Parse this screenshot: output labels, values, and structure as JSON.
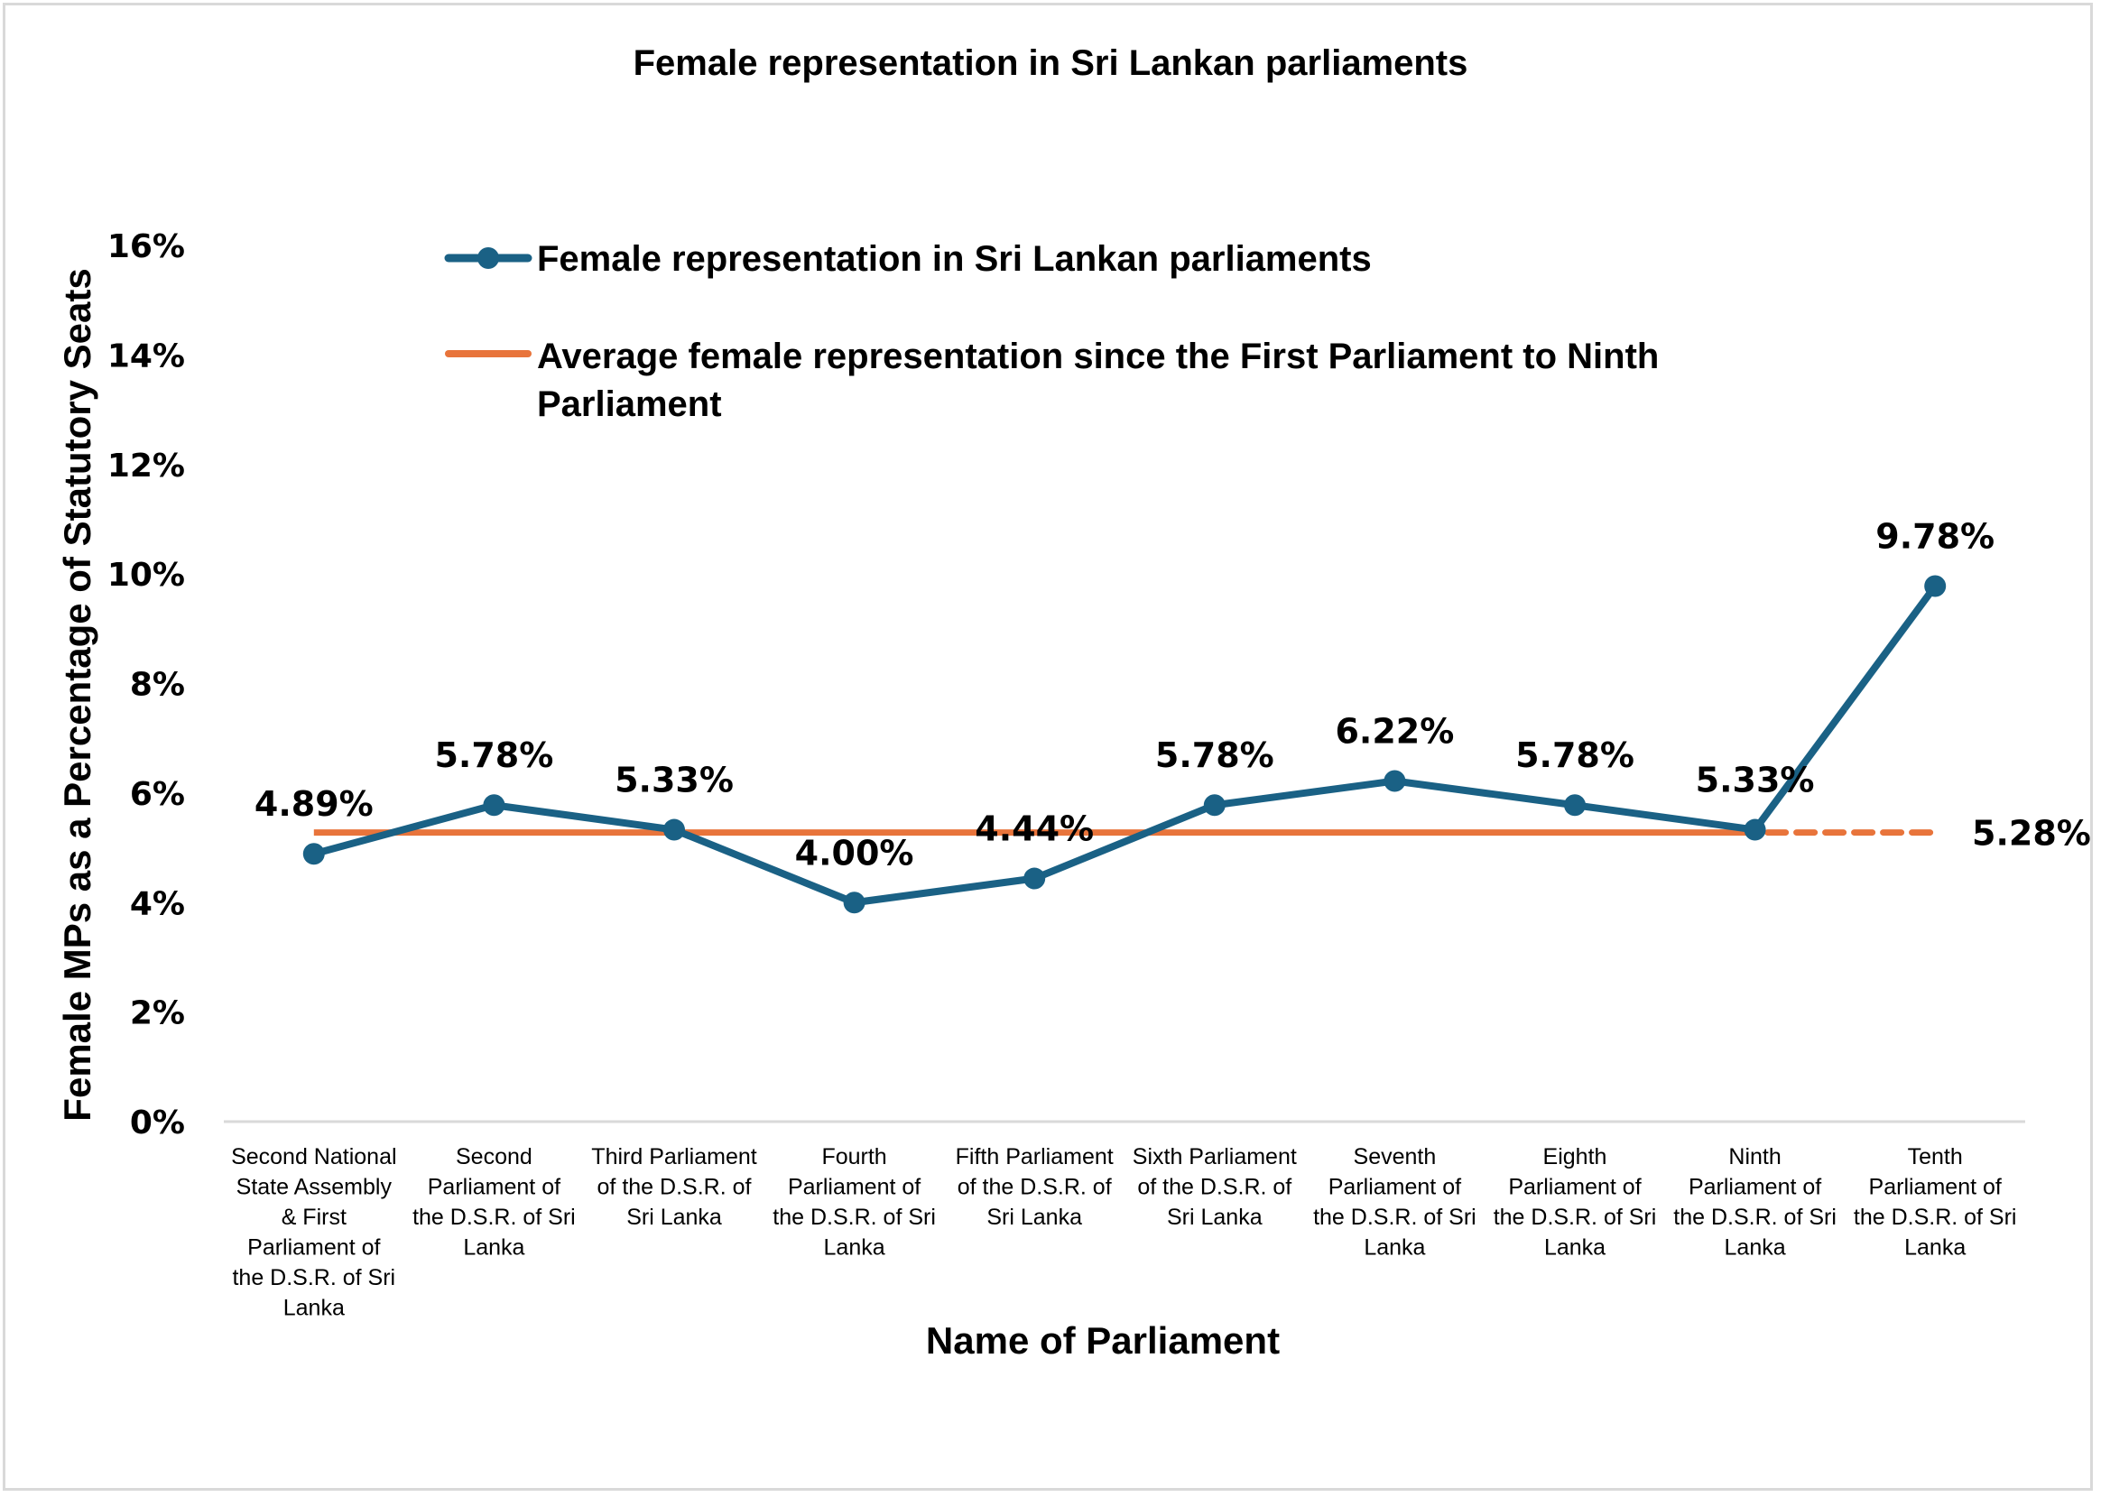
{
  "chart_data": {
    "type": "line",
    "title": "Female representation in Sri Lankan parliaments",
    "xlabel": "Name of Parliament",
    "ylabel": "Female MPs as a Percentage of Statutory Seats",
    "ylim": [
      0,
      16
    ],
    "yticks": [
      0,
      2,
      4,
      6,
      8,
      10,
      12,
      14,
      16
    ],
    "ytick_labels": [
      "0%",
      "2%",
      "4%",
      "6%",
      "8%",
      "10%",
      "12%",
      "14%",
      "16%"
    ],
    "grid": false,
    "legend_position": "top-center",
    "categories": [
      [
        "Second National",
        "State Assembly",
        "& First",
        "Parliament of",
        "the D.S.R. of Sri",
        "Lanka"
      ],
      [
        "Second",
        "Parliament of",
        "the D.S.R. of Sri",
        "Lanka"
      ],
      [
        "Third Parliament",
        "of the D.S.R. of",
        "Sri Lanka"
      ],
      [
        "Fourth",
        "Parliament of",
        "the D.S.R. of Sri",
        "Lanka"
      ],
      [
        "Fifth Parliament",
        "of the D.S.R. of",
        "Sri Lanka"
      ],
      [
        "Sixth Parliament",
        "of the D.S.R. of",
        "Sri Lanka"
      ],
      [
        "Seventh",
        "Parliament of",
        "the D.S.R. of Sri",
        "Lanka"
      ],
      [
        "Eighth",
        "Parliament of",
        "the D.S.R. of Sri",
        "Lanka"
      ],
      [
        "Ninth",
        "Parliament of",
        "the D.S.R. of Sri",
        "Lanka"
      ],
      [
        "Tenth",
        "Parliament of",
        "the D.S.R. of Sri",
        "Lanka"
      ]
    ],
    "series": [
      {
        "name": "Female representation in Sri Lankan parliaments",
        "color": "#1a6185",
        "marker": "circle",
        "values": [
          4.89,
          5.78,
          5.33,
          4.0,
          4.44,
          5.78,
          6.22,
          5.78,
          5.33,
          9.78
        ],
        "data_labels": [
          "4.89%",
          "5.78%",
          "5.33%",
          "4.00%",
          "4.44%",
          "5.78%",
          "6.22%",
          "5.78%",
          "5.33%",
          "9.78%"
        ]
      },
      {
        "name": "Average female representation since the First Parliament to Ninth Parliament",
        "legend_lines": [
          "Average female representation since the First Parliament to Ninth",
          "Parliament"
        ],
        "color": "#e8743b",
        "value": 5.28,
        "solid_through_index": 8,
        "dashed_through_index": 9,
        "data_label": "5.28%"
      }
    ]
  }
}
